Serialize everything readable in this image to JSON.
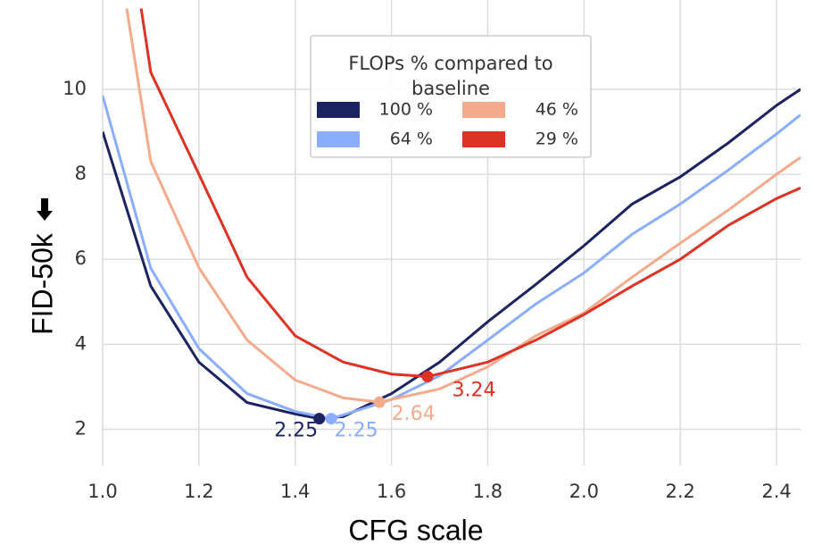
{
  "chart_data": {
    "type": "line",
    "x_label": "CFG scale",
    "y_label": "FID-50k",
    "legend_title": "FLOPs % compared to baseline",
    "legend_position": "upper center",
    "xlim": [
      1.0,
      2.45
    ],
    "ylim": [
      1.15,
      12.1
    ],
    "xticks": [
      {
        "value": 1.0,
        "label": "1.0"
      },
      1.2,
      1.4,
      1.6,
      1.8,
      {
        "value": 2.0,
        "label": "2.0"
      },
      2.2,
      2.4
    ],
    "yticks": [
      2,
      4,
      6,
      8,
      10
    ],
    "grid": true,
    "series": [
      {
        "name": "100 %",
        "color": "#1b2461",
        "x": [
          1.0,
          1.1,
          1.2,
          1.3,
          1.4,
          1.45,
          1.5,
          1.6,
          1.7,
          1.8,
          1.9,
          2.0,
          2.1,
          2.2,
          2.3,
          2.4,
          2.45
        ],
        "values": [
          9.0,
          5.37,
          3.58,
          2.63,
          2.36,
          2.25,
          2.3,
          2.84,
          3.58,
          4.53,
          5.41,
          6.32,
          7.3,
          7.94,
          8.74,
          9.62,
          10.0
        ],
        "min_x": 1.45,
        "min_y": 2.25
      },
      {
        "name": "64 %",
        "color": "#8aadff",
        "x": [
          1.0,
          1.1,
          1.2,
          1.3,
          1.4,
          1.475,
          1.6,
          1.7,
          1.8,
          1.9,
          2.0,
          2.1,
          2.2,
          2.3,
          2.4,
          2.45
        ],
        "values": [
          9.85,
          5.79,
          3.9,
          2.84,
          2.42,
          2.25,
          2.7,
          3.26,
          4.1,
          4.95,
          5.68,
          6.59,
          7.3,
          8.1,
          8.95,
          9.4
        ],
        "min_x": 1.475,
        "min_y": 2.25
      },
      {
        "name": "46 %",
        "color": "#f5aa8b",
        "x": [
          1.05,
          1.1,
          1.2,
          1.3,
          1.4,
          1.5,
          1.575,
          1.7,
          1.8,
          1.9,
          2.0,
          2.1,
          2.2,
          2.3,
          2.4,
          2.45
        ],
        "values": [
          11.9,
          8.3,
          5.8,
          4.1,
          3.16,
          2.74,
          2.64,
          2.95,
          3.47,
          4.2,
          4.74,
          5.58,
          6.38,
          7.16,
          8.0,
          8.4
        ],
        "min_x": 1.575,
        "min_y": 2.64
      },
      {
        "name": "29 %",
        "color": "#de3324",
        "x": [
          1.08,
          1.1,
          1.2,
          1.3,
          1.4,
          1.5,
          1.6,
          1.675,
          1.8,
          1.9,
          2.0,
          2.1,
          2.2,
          2.3,
          2.4,
          2.45
        ],
        "values": [
          11.9,
          10.4,
          8.0,
          5.58,
          4.2,
          3.58,
          3.3,
          3.24,
          3.58,
          4.1,
          4.7,
          5.37,
          6.0,
          6.8,
          7.43,
          7.68
        ],
        "min_x": 1.675,
        "min_y": 3.24
      }
    ]
  }
}
